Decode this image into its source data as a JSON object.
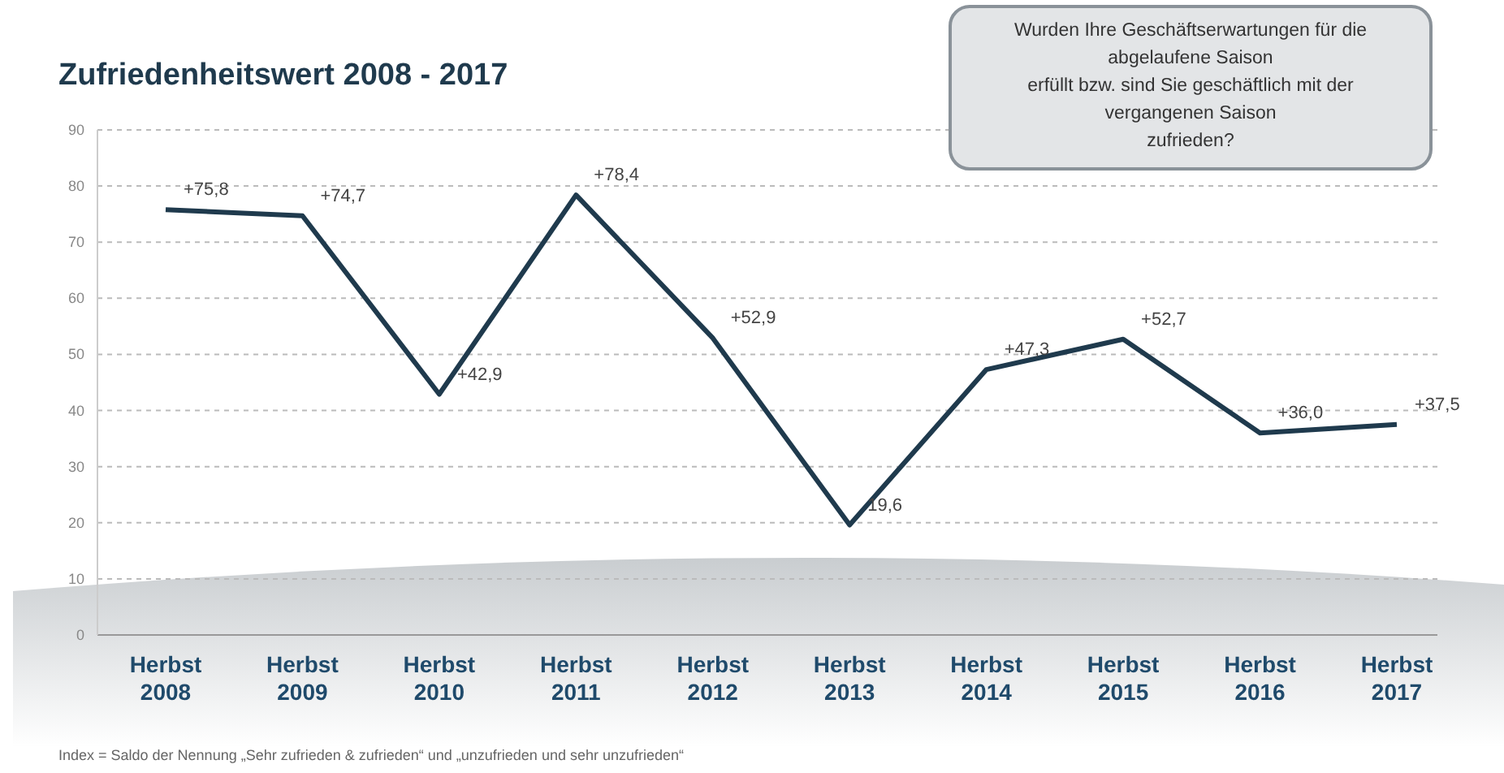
{
  "chart_data": {
    "type": "line",
    "title": "Zufriedenheitswert  2008 - 2017",
    "categories": [
      "Herbst\n2008",
      "Herbst\n2009",
      "Herbst\n2010",
      "Herbst\n2011",
      "Herbst\n2012",
      "Herbst\n2013",
      "Herbst\n2014",
      "Herbst\n2015",
      "Herbst\n2016",
      "Herbst\n2017"
    ],
    "series": [
      {
        "color": "#1f3a4d",
        "values": [
          75.8,
          74.7,
          42.9,
          78.4,
          52.9,
          19.6,
          47.3,
          52.7,
          36.0,
          37.5
        ],
        "value_labels": [
          "+75,8",
          "+74,7",
          "+42,9",
          "+78,4",
          "+52,9",
          "19,6",
          "+47,3",
          "+52,7",
          "+36,0",
          "+37,5"
        ]
      }
    ],
    "ylim": [
      0,
      90
    ],
    "yticks": [
      0,
      10,
      20,
      30,
      40,
      50,
      60,
      70,
      80,
      90
    ],
    "grid": "y",
    "marker": "none",
    "line_style": "solid",
    "annotations": [
      "Wurden Ihre Geschäftserwartungen für die\nabgelaufene Saison\nerfüllt bzw. sind Sie geschäftlich mit der\nvergangenen Saison\nzufrieden?",
      "Index = Saldo der Nennung „Sehr zufrieden & zufrieden“ und „unzufrieden und sehr unzufrieden“"
    ]
  }
}
